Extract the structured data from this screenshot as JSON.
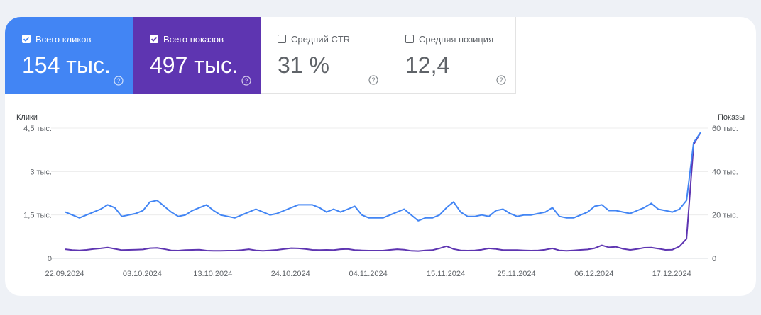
{
  "metrics": [
    {
      "label": "Всего кликов",
      "value": "154 тыс.",
      "checked": true,
      "color": "#4285f4"
    },
    {
      "label": "Всего показов",
      "value": "497 тыс.",
      "checked": true,
      "color": "#5e35b1"
    },
    {
      "label": "Средний CTR",
      "value": "31 %",
      "checked": false,
      "color": "#ffffff"
    },
    {
      "label": "Средняя позиция",
      "value": "12,4",
      "checked": false,
      "color": "#ffffff"
    }
  ],
  "icons": {
    "checkbox": "checkbox-icon",
    "help": "help-circle-icon"
  },
  "chart_data": {
    "type": "line",
    "left_axis_title": "Клики",
    "right_axis_title": "Показы",
    "left_ticks": [
      "4,5 тыс.",
      "3 тыс.",
      "1,5 тыс.",
      "0"
    ],
    "right_ticks": [
      "60 тыс.",
      "40 тыс.",
      "20 тыс.",
      "0"
    ],
    "left_range": [
      0,
      4500
    ],
    "right_range": [
      0,
      60000
    ],
    "x_labels": [
      "22.09.2024",
      "03.10.2024",
      "13.10.2024",
      "24.10.2024",
      "04.11.2024",
      "15.11.2024",
      "25.11.2024",
      "06.12.2024",
      "17.12.2024"
    ],
    "x_label_indices": [
      0,
      11,
      21,
      32,
      43,
      54,
      64,
      75,
      86
    ],
    "grid": true,
    "series": [
      {
        "name": "Всего кликов",
        "axis": "left",
        "color": "#4285f4",
        "values": [
          1600,
          1500,
          1400,
          1500,
          1600,
          1700,
          1850,
          1750,
          1450,
          1500,
          1550,
          1650,
          1950,
          2000,
          1800,
          1600,
          1450,
          1500,
          1650,
          1750,
          1850,
          1650,
          1500,
          1450,
          1400,
          1500,
          1600,
          1700,
          1600,
          1500,
          1550,
          1650,
          1750,
          1850,
          1850,
          1850,
          1750,
          1600,
          1700,
          1600,
          1700,
          1800,
          1500,
          1400,
          1400,
          1400,
          1500,
          1600,
          1700,
          1500,
          1300,
          1400,
          1400,
          1500,
          1750,
          1950,
          1600,
          1450,
          1450,
          1500,
          1450,
          1650,
          1700,
          1550,
          1450,
          1500,
          1500,
          1550,
          1600,
          1750,
          1450,
          1400,
          1400,
          1500,
          1600,
          1800,
          1850,
          1650,
          1650,
          1600,
          1550,
          1650,
          1750,
          1900,
          1700,
          1650,
          1600,
          1700,
          2000,
          4000,
          4350
        ]
      },
      {
        "name": "Всего показов",
        "axis": "right",
        "color": "#5e35b1",
        "values": [
          4200,
          3800,
          3700,
          3900,
          4300,
          4600,
          5000,
          4400,
          3800,
          3900,
          4000,
          4100,
          4700,
          4800,
          4300,
          3700,
          3600,
          3800,
          3900,
          4000,
          3600,
          3500,
          3500,
          3600,
          3600,
          3800,
          4200,
          3700,
          3500,
          3700,
          3900,
          4300,
          4700,
          4600,
          4300,
          3900,
          3800,
          3900,
          3800,
          4200,
          4300,
          3800,
          3700,
          3600,
          3600,
          3600,
          3900,
          4200,
          4000,
          3500,
          3400,
          3700,
          3800,
          4600,
          5600,
          4300,
          3700,
          3600,
          3700,
          4000,
          4600,
          4300,
          3800,
          3800,
          3800,
          3700,
          3600,
          3700,
          4000,
          4600,
          3700,
          3500,
          3700,
          3900,
          4100,
          4700,
          6000,
          5100,
          5300,
          4400,
          3900,
          4300,
          4900,
          5000,
          4500,
          3900,
          4000,
          5500,
          9000,
          52500,
          58000
        ]
      }
    ]
  }
}
